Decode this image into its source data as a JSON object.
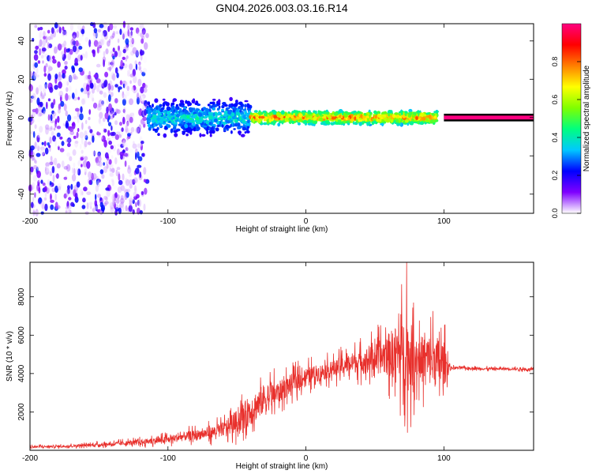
{
  "title": "GN04.2026.003.03.16.R14",
  "chart_data": [
    {
      "type": "heatmap",
      "xlabel": "Height of straight line (km)",
      "ylabel": "Frequency (Hz)",
      "xlim": [
        -200,
        165
      ],
      "ylim": [
        -50,
        49
      ],
      "xticks": [
        -200,
        -100,
        0,
        100
      ],
      "yticks": [
        -40,
        -20,
        0,
        20,
        40
      ],
      "grid": false,
      "colorbar": {
        "label": "Normalized spectral amplitude",
        "range": [
          0,
          1
        ],
        "ticks": [
          "0.0",
          "0.2",
          "0.4",
          "0.6",
          "0.8"
        ],
        "colors": [
          "#ffffff",
          "#7f00ff",
          "#0000ff",
          "#00c8ff",
          "#00ff7f",
          "#7fff00",
          "#ffff00",
          "#ff7f00",
          "#ff0000",
          "#ff0080"
        ]
      },
      "regions": [
        {
          "x": [
            -200,
            -115
          ],
          "freq_spread": 50,
          "amplitude": [
            0.0,
            0.25
          ],
          "pattern": "scattered noise"
        },
        {
          "x": [
            -115,
            -40
          ],
          "freq_center": 0,
          "freq_spread": 8,
          "amplitude": [
            0.15,
            0.45
          ]
        },
        {
          "x": [
            -40,
            95
          ],
          "freq_center": 0,
          "freq_spread": 3,
          "amplitude": [
            0.3,
            0.9
          ]
        },
        {
          "x": [
            100,
            165
          ],
          "freq_center": 0,
          "freq_spread": 1,
          "amplitude": [
            0.85,
            1.0
          ]
        }
      ]
    },
    {
      "type": "line",
      "xlabel": "Height of straight line (km)",
      "ylabel": "SNR (10 * v/v)",
      "xlim": [
        -200,
        165
      ],
      "ylim": [
        0,
        9800
      ],
      "xticks": [
        -200,
        -100,
        0,
        100
      ],
      "yticks": [
        2000,
        4000,
        6000,
        8000
      ],
      "grid": false,
      "series": [
        {
          "color": "#e8302c",
          "x": [
            -200,
            -180,
            -160,
            -140,
            -120,
            -100,
            -90,
            -80,
            -70,
            -60,
            -50,
            -40,
            -30,
            -20,
            -10,
            0,
            10,
            20,
            30,
            40,
            50,
            60,
            70,
            75,
            80,
            90,
            95,
            100,
            105,
            110,
            130,
            150,
            165
          ],
          "y": [
            180,
            200,
            260,
            330,
            420,
            560,
            700,
            800,
            900,
            1100,
            1500,
            2100,
            2700,
            3000,
            3500,
            3850,
            4050,
            4250,
            4500,
            4650,
            4800,
            5000,
            5200,
            4900,
            4800,
            4700,
            4600,
            4500,
            4300,
            4300,
            4250,
            4250,
            4200
          ],
          "spread": [
            120,
            130,
            160,
            220,
            300,
            420,
            500,
            560,
            650,
            800,
            1300,
            1800,
            1700,
            1300,
            1100,
            1000,
            950,
            950,
            1100,
            1300,
            1600,
            2500,
            3800,
            4200,
            2500,
            3000,
            3000,
            2600,
            170,
            150,
            150,
            150,
            150
          ],
          "peak": {
            "x": 73,
            "y": 9800
          }
        }
      ]
    }
  ]
}
